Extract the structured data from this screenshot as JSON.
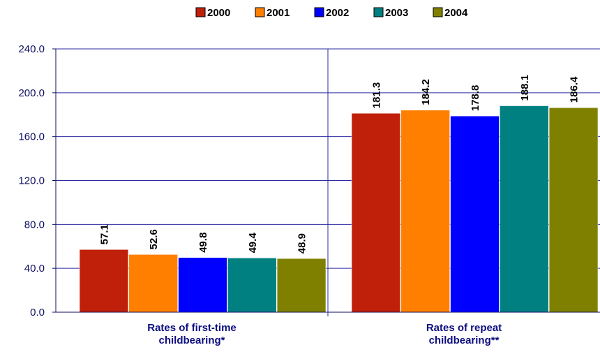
{
  "chart_data": {
    "type": "bar",
    "categories": [
      [
        "Rates of first-time",
        "childbearing*"
      ],
      [
        "Rates of repeat",
        "childbearing**"
      ]
    ],
    "series": [
      {
        "name": "2000",
        "color": "#c0200a",
        "values": [
          57.1,
          181.3
        ],
        "labels": [
          "57.1",
          "181.3"
        ]
      },
      {
        "name": "2001",
        "color": "#ff8000",
        "values": [
          52.6,
          184.2
        ],
        "labels": [
          "52.6",
          "184.2"
        ]
      },
      {
        "name": "2002",
        "color": "#0000ff",
        "values": [
          49.8,
          178.8
        ],
        "labels": [
          "49.8",
          "178.8"
        ]
      },
      {
        "name": "2003",
        "color": "#008080",
        "values": [
          49.4,
          188.1
        ],
        "labels": [
          "49.4",
          "188.1"
        ]
      },
      {
        "name": "2004",
        "color": "#808000",
        "values": [
          48.9,
          186.4
        ],
        "labels": [
          "48.9",
          "186.4"
        ]
      }
    ],
    "ylim": [
      0,
      240
    ],
    "yticks": [
      "0.0",
      "40.0",
      "80.0",
      "120.0",
      "160.0",
      "200.0",
      "240.0"
    ],
    "ytick_values": [
      0,
      40,
      80,
      120,
      160,
      200,
      240
    ],
    "grid": true,
    "legend_position": "top-center",
    "colors": {
      "grid": "#2a2aa0",
      "axis": "#0d0d60"
    }
  }
}
